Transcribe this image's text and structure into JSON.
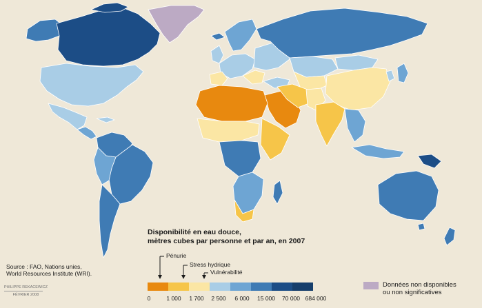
{
  "colors": {
    "ocean": "#efe8d8",
    "c1": "#e8890f",
    "c2": "#f6c549",
    "c3": "#fbe6a4",
    "c4": "#a9cde6",
    "c5": "#6ea5d3",
    "c6": "#3f7bb4",
    "c7": "#1c4d86",
    "no_data": "#bcaac4"
  },
  "legend": {
    "title_line1": "Disponibilité en eau douce,",
    "title_line2": "mètres cubes par personne et par an, en 2007",
    "thresholds": {
      "penurie": "Pénurie",
      "stress": "Stress hydrique",
      "vulnerabilite": "Vulnérabilité"
    },
    "ticks": [
      "0",
      "1 000",
      "1 700",
      "2 500",
      "6 000",
      "15 000",
      "70 000",
      "684 000"
    ],
    "no_data_line1": "Données non disponibles",
    "no_data_line2": "ou non significatives"
  },
  "source": {
    "line1": "Source : FAO, Nations unies,",
    "line2": "World Resources Institute (WRI)."
  },
  "credit": {
    "author": "PHILIPPE REKACEWICZ",
    "date": "FÉVRIER 2008"
  }
}
